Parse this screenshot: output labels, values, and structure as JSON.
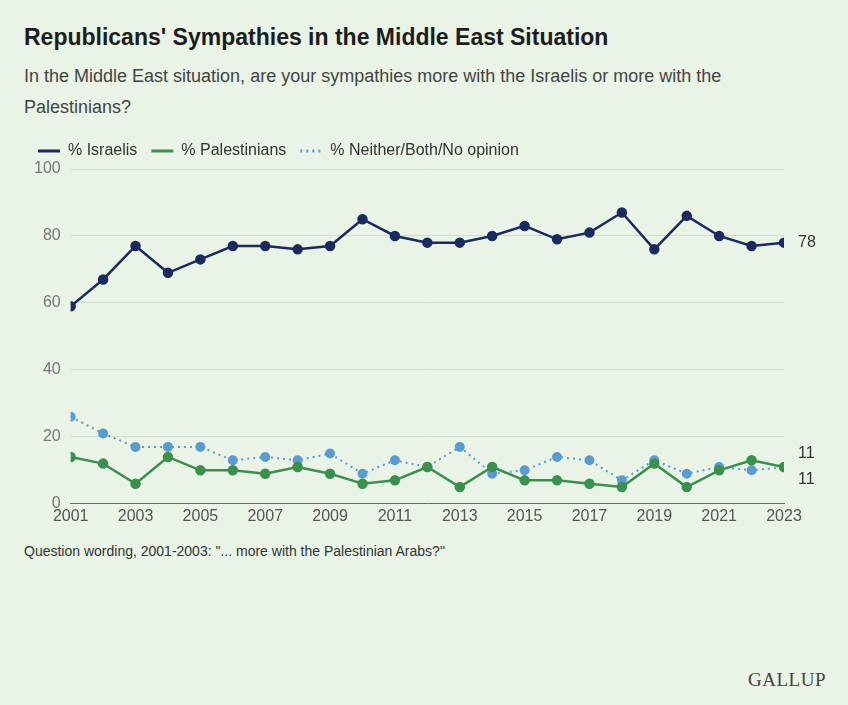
{
  "chart_data": {
    "type": "line",
    "title": "Republicans' Sympathies in the Middle East Situation",
    "subtitle": "In the Middle East situation, are your sympathies more with the Israelis or more with the Palestinians?",
    "x": [
      2001,
      2002,
      2003,
      2004,
      2005,
      2006,
      2007,
      2008,
      2009,
      2010,
      2011,
      2012,
      2013,
      2014,
      2015,
      2016,
      2017,
      2018,
      2019,
      2020,
      2021,
      2022,
      2023
    ],
    "xlim": [
      2001,
      2023
    ],
    "xticks": [
      2001,
      2003,
      2005,
      2007,
      2009,
      2011,
      2013,
      2015,
      2017,
      2019,
      2021,
      2023
    ],
    "ylim": [
      0,
      100
    ],
    "yticks": [
      0,
      20,
      40,
      60,
      80,
      100
    ],
    "grid": true,
    "legend": "top-left",
    "series": [
      {
        "name": "% Israelis",
        "color": "#1b2a5e",
        "marker": "circle",
        "line_style": "solid",
        "values": [
          59,
          67,
          77,
          69,
          73,
          77,
          77,
          76,
          77,
          85,
          80,
          78,
          78,
          80,
          83,
          79,
          81,
          87,
          76,
          86,
          80,
          77,
          78
        ]
      },
      {
        "name": "% Palestinians",
        "color": "#3b8f4f",
        "marker": "circle",
        "line_style": "solid",
        "values": [
          14,
          12,
          6,
          14,
          10,
          10,
          9,
          11,
          9,
          6,
          7,
          11,
          5,
          11,
          7,
          7,
          6,
          5,
          12,
          5,
          10,
          13,
          11
        ]
      },
      {
        "name": "% Neither/Both/No opinion",
        "color": "#5b9bd0",
        "marker": "circle",
        "line_style": "dotted",
        "values": [
          26,
          21,
          17,
          17,
          17,
          13,
          14,
          13,
          15,
          9,
          13,
          11,
          17,
          9,
          10,
          14,
          13,
          7,
          13,
          9,
          11,
          10,
          11
        ]
      }
    ],
    "annotations": [
      {
        "text": "78",
        "series": "% Israelis"
      },
      {
        "text": "11",
        "series": "% Neither/Both/No opinion"
      },
      {
        "text": "11",
        "series": "% Palestinians"
      }
    ],
    "footnote": "Question wording, 2001-2003: \"... more with the Palestinian Arabs?\"",
    "source": "GALLUP"
  }
}
